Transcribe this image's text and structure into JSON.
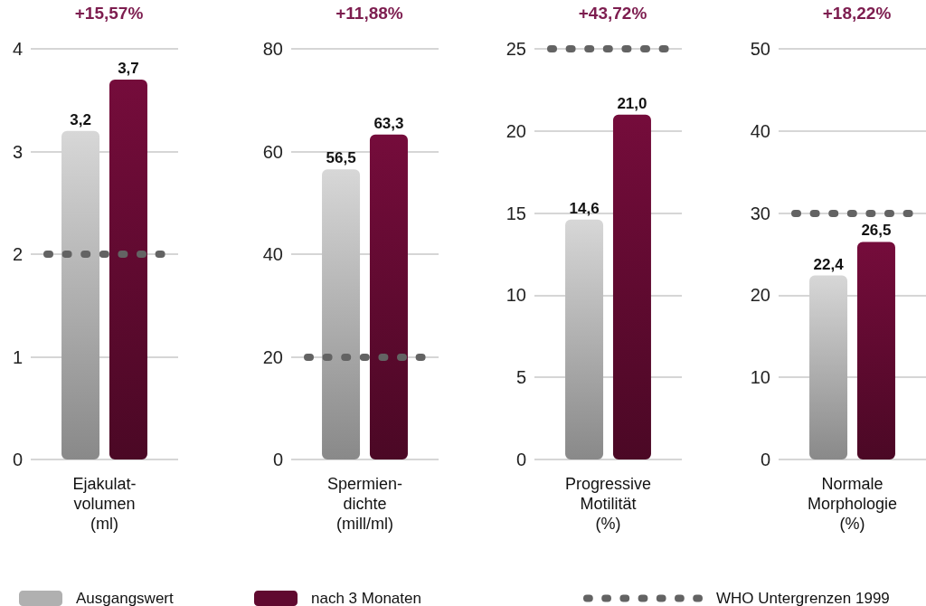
{
  "chart_data": [
    {
      "type": "bar",
      "title": "+15,57%",
      "xlabel": "Ejakulat-\nvolumen\n(ml)",
      "categories": [
        null
      ],
      "series": [
        {
          "name": "Ausgangswert",
          "color": "#b0b0b0",
          "values": [
            3.2
          ],
          "value_labels": [
            "3,2"
          ]
        },
        {
          "name": "nach 3 Monaten",
          "color": "#600a30",
          "values": [
            3.7
          ],
          "value_labels": [
            "3,7"
          ]
        }
      ],
      "ylim": [
        0,
        4
      ],
      "yticks": [
        0,
        1,
        2,
        3,
        4
      ],
      "grid": "y",
      "legend": "bottom",
      "ref_lines": [
        {
          "axis": "y",
          "value": 2,
          "label": "WHO Untergrenzen 1999",
          "color": "#636363",
          "line_style": "dotted"
        }
      ]
    },
    {
      "type": "bar",
      "title": "+11,88%",
      "xlabel": "Spermien-\ndichte\n(mill/ml)",
      "categories": [
        null
      ],
      "series": [
        {
          "color": "#b0b0b0",
          "values": [
            56.5
          ],
          "value_labels": [
            "56,5"
          ]
        },
        {
          "color": "#600a30",
          "values": [
            63.3
          ],
          "value_labels": [
            "63,3"
          ]
        }
      ],
      "ylim": [
        0,
        80
      ],
      "yticks": [
        0,
        20,
        40,
        60,
        80
      ],
      "grid": "y",
      "ref_lines": [
        {
          "axis": "y",
          "value": 20,
          "color": "#636363",
          "line_style": "dotted"
        }
      ]
    },
    {
      "type": "bar",
      "title": "+43,72%",
      "xlabel": "Progressive\nMotilität\n(%)",
      "categories": [
        null
      ],
      "series": [
        {
          "color": "#b0b0b0",
          "values": [
            14.6
          ],
          "value_labels": [
            "14,6"
          ]
        },
        {
          "color": "#600a30",
          "values": [
            21.0
          ],
          "value_labels": [
            "21,0"
          ]
        }
      ],
      "ylim": [
        0,
        25
      ],
      "yticks": [
        0,
        5,
        10,
        15,
        20,
        25
      ],
      "grid": "y",
      "ref_lines": [
        {
          "axis": "y",
          "value": 25,
          "color": "#636363",
          "line_style": "dotted"
        }
      ]
    },
    {
      "type": "bar",
      "title": "+18,22%",
      "xlabel": "Normale\nMorphologie\n(%)",
      "categories": [
        null
      ],
      "series": [
        {
          "color": "#b0b0b0",
          "values": [
            22.4
          ],
          "value_labels": [
            "22,4"
          ]
        },
        {
          "color": "#600a30",
          "values": [
            26.5
          ],
          "value_labels": [
            "26,5"
          ]
        }
      ],
      "ylim": [
        0,
        50
      ],
      "yticks": [
        0,
        10,
        20,
        30,
        40,
        50
      ],
      "grid": "y",
      "ref_lines": [
        {
          "axis": "y",
          "value": 30,
          "color": "#636363",
          "line_style": "dotted"
        }
      ]
    }
  ]
}
